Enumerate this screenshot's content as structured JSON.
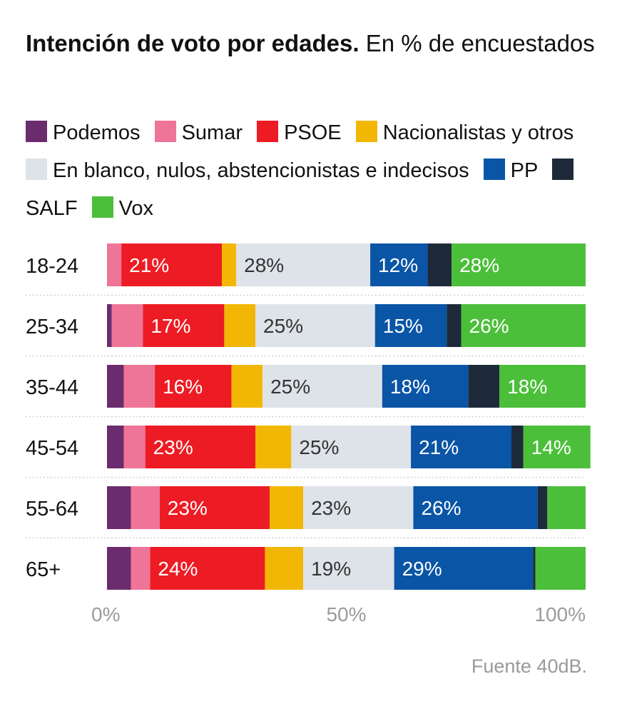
{
  "title_bold": "Intención de voto por edades.",
  "title_rest": " En % de encuestados",
  "source": "Fuente 40dB.",
  "chart_data": {
    "type": "bar",
    "orientation": "horizontal",
    "stacked": true,
    "xlim": [
      0,
      100
    ],
    "x_ticks": [
      "0%",
      "50%",
      "100%"
    ],
    "categories": [
      "18-24",
      "25-34",
      "35-44",
      "45-54",
      "55-64",
      "65+"
    ],
    "series": [
      {
        "name": "Podemos",
        "color": "#6b2c6e",
        "values": [
          0,
          1,
          3.5,
          3.5,
          5,
          5
        ]
      },
      {
        "name": "Sumar",
        "color": "#ee7597",
        "values": [
          3,
          6.5,
          6.5,
          4.5,
          6,
          4
        ]
      },
      {
        "name": "PSOE",
        "color": "#ed1c24",
        "values": [
          21,
          17,
          16,
          23,
          23,
          24
        ],
        "labels": [
          "21%",
          "17%",
          "16%",
          "23%",
          "23%",
          "24%"
        ]
      },
      {
        "name": "Nacionalistas y otros",
        "color": "#f2b705",
        "values": [
          3,
          6.5,
          6.5,
          7.5,
          7,
          8
        ]
      },
      {
        "name": "En blanco, nulos, abstencionistas e indecisos",
        "color": "#dde3e8",
        "values": [
          28,
          25,
          25,
          25,
          23,
          19
        ],
        "labels": [
          "28%",
          "25%",
          "25%",
          "25%",
          "23%",
          "19%"
        ]
      },
      {
        "name": "PP",
        "color": "#0a55a6",
        "values": [
          12,
          15,
          18,
          21,
          26,
          29
        ],
        "labels": [
          "12%",
          "15%",
          "18%",
          "21%",
          "26%",
          "29%"
        ]
      },
      {
        "name": "SALF",
        "color": "#1e2a3a",
        "values": [
          5,
          3,
          6.5,
          2.5,
          2,
          0.5
        ]
      },
      {
        "name": "Vox",
        "color": "#4cbf3a",
        "values": [
          28,
          26,
          18,
          14,
          8,
          10.5
        ],
        "labels": [
          "28%",
          "26%",
          "18%",
          "14%",
          "",
          ""
        ]
      }
    ]
  }
}
